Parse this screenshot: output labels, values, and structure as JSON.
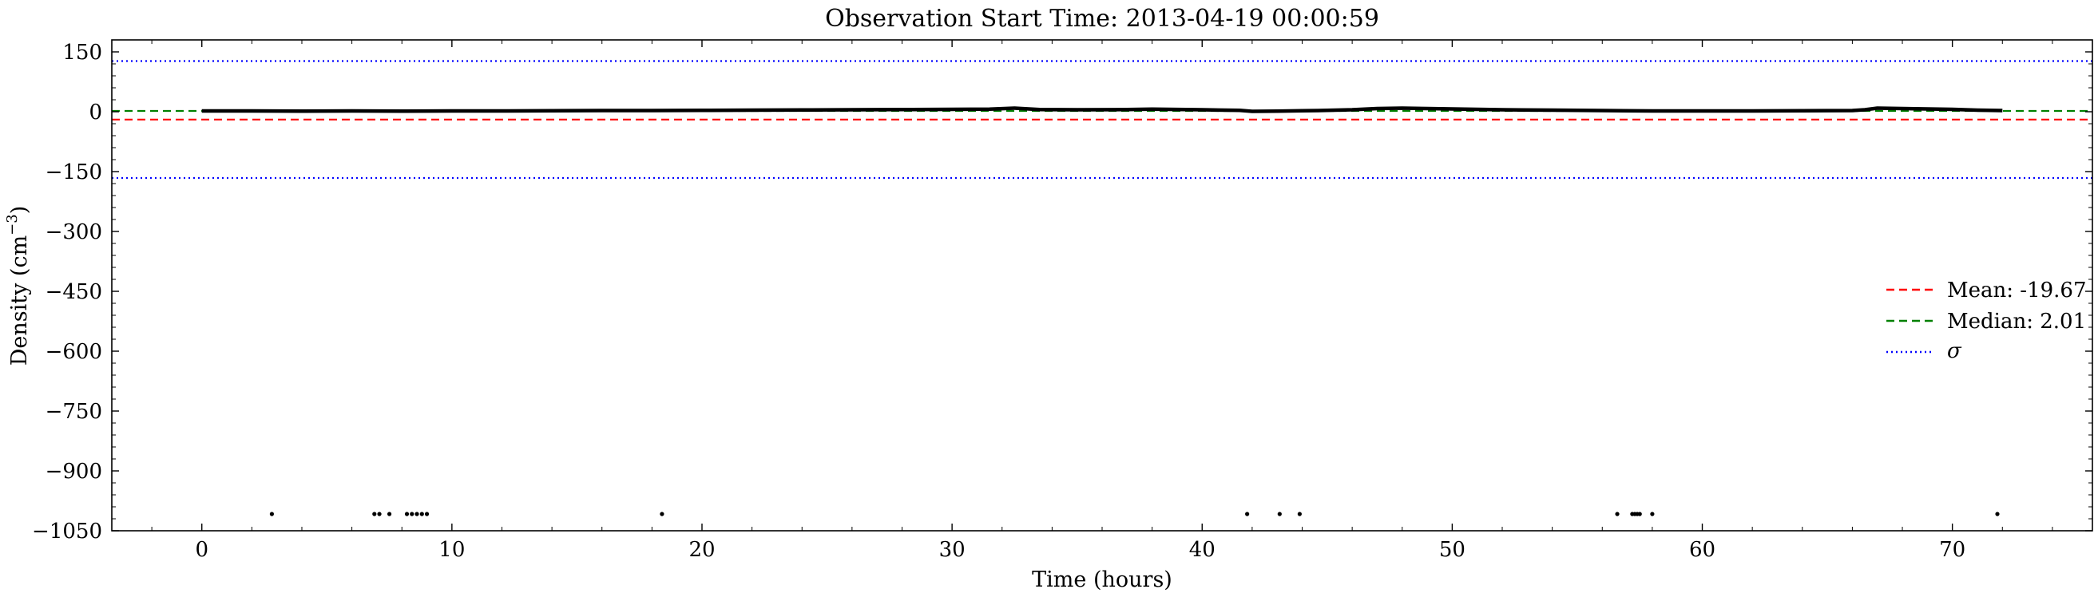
{
  "chart_data": {
    "type": "scatter",
    "title": "Observation Start Time: 2013-04-19 00:00:59",
    "xlabel": "Time (hours)",
    "ylabel_main": "Density (cm",
    "ylabel_sup": "−3",
    "ylabel_close": ")",
    "xlim": [
      -3.6,
      75.6
    ],
    "ylim": [
      -1050,
      180
    ],
    "x_ticks": [
      0,
      10,
      20,
      30,
      40,
      50,
      60,
      70
    ],
    "x_tick_labels": [
      "0",
      "10",
      "20",
      "30",
      "40",
      "50",
      "60",
      "70"
    ],
    "y_ticks": [
      150,
      0,
      -150,
      -300,
      -450,
      -600,
      -750,
      -900,
      -1050
    ],
    "y_tick_labels": [
      "150",
      "0",
      "−150",
      "−300",
      "−450",
      "−600",
      "−750",
      "−900",
      "−1050"
    ],
    "mean": -19.67,
    "median": 2.01,
    "sigma_upper": 127,
    "sigma_lower": -166,
    "trace": {
      "x": [
        0,
        2,
        4,
        6,
        8,
        10,
        12,
        14,
        16,
        18,
        20,
        22,
        24,
        26,
        28,
        30,
        31.5,
        32.5,
        33.5,
        35,
        37,
        38,
        40,
        41.5,
        42,
        43,
        44,
        45,
        46,
        47,
        48,
        49,
        50,
        51,
        52,
        54,
        56,
        58,
        60,
        62,
        64,
        66,
        66.5,
        67,
        68,
        69,
        70,
        71,
        72
      ],
      "y": [
        2,
        2,
        1.5,
        2,
        1.5,
        2,
        2,
        2.5,
        3,
        3,
        3.5,
        4,
        4.5,
        5,
        5.5,
        6,
        6.5,
        9,
        5.5,
        5,
        5.5,
        6.5,
        5,
        3.5,
        1,
        1.5,
        2.5,
        3.5,
        5,
        8,
        9,
        8,
        7,
        6,
        5,
        4,
        3,
        2,
        2,
        2,
        2.5,
        3,
        5,
        9,
        8,
        7,
        6,
        4,
        3
      ]
    },
    "outliers": {
      "x": [
        2.8,
        6.9,
        7.1,
        7.5,
        8.2,
        8.4,
        8.6,
        8.8,
        9.0,
        18.4,
        41.8,
        43.1,
        43.9,
        56.6,
        57.2,
        57.3,
        57.4,
        57.5,
        58.0,
        71.8
      ],
      "y": [
        -1008,
        -1008,
        -1008,
        -1008,
        -1008,
        -1008,
        -1008,
        -1008,
        -1008,
        -1008,
        -1008,
        -1008,
        -1008,
        -1008,
        -1008,
        -1008,
        -1008,
        -1008,
        -1008,
        -1008
      ]
    },
    "legend": {
      "position": "right",
      "entries": [
        {
          "label": "Mean: -19.67",
          "color": "#ff0000",
          "style": "dashed"
        },
        {
          "label": "Median: 2.01",
          "color": "#008000",
          "style": "dashed"
        },
        {
          "label": "σ",
          "color": "#0000ff",
          "style": "dotted"
        }
      ]
    },
    "colors": {
      "data": "#000000",
      "mean": "#ff0000",
      "median": "#008000",
      "sigma": "#0000ff"
    }
  }
}
